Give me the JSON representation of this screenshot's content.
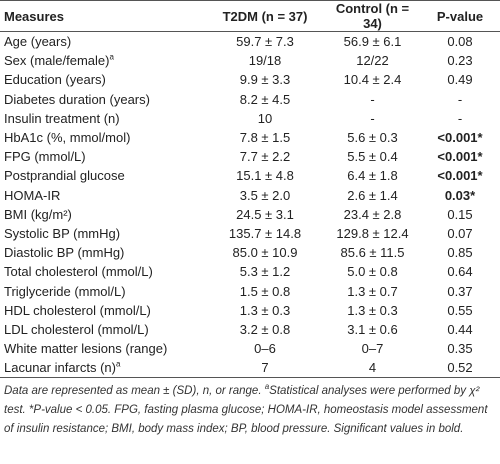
{
  "table": {
    "header": [
      "Measures",
      "T2DM (n = 37)",
      "Control (n = 34)",
      "P-value"
    ],
    "rows": [
      {
        "label": "Age (years)",
        "t2dm": "59.7 ± 7.3",
        "control": "56.9 ± 6.1",
        "p": "0.08"
      },
      {
        "label": "Sex (male/female)",
        "sup": "a",
        "t2dm": "19/18",
        "control": "12/22",
        "p": "0.23"
      },
      {
        "label": "Education (years)",
        "t2dm": "9.9 ± 3.3",
        "control": "10.4 ± 2.4",
        "p": "0.49"
      },
      {
        "label": "Diabetes duration (years)",
        "t2dm": "8.2 ± 4.5",
        "control": "-",
        "p": "-"
      },
      {
        "label": "Insulin treatment (n)",
        "t2dm": "10",
        "control": "-",
        "p": "-"
      },
      {
        "label": "HbA1c (%, mmol/mol)",
        "t2dm": "7.8 ± 1.5",
        "control": "5.6 ± 0.3",
        "p": "<0.001*",
        "bold": true
      },
      {
        "label": "FPG (mmol/L)",
        "t2dm": "7.7 ± 2.2",
        "control": "5.5 ± 0.4",
        "p": "<0.001*",
        "bold": true
      },
      {
        "label": "Postprandial glucose",
        "t2dm": "15.1 ± 4.8",
        "control": "6.4 ± 1.8",
        "p": "<0.001*",
        "bold": true
      },
      {
        "label": "HOMA-IR",
        "t2dm": "3.5 ± 2.0",
        "control": "2.6 ± 1.4",
        "p": "0.03*",
        "bold": true
      },
      {
        "label": "BMI (kg/m²)",
        "t2dm": "24.5 ± 3.1",
        "control": "23.4 ± 2.8",
        "p": "0.15"
      },
      {
        "label": "Systolic BP (mmHg)",
        "t2dm": "135.7 ± 14.8",
        "control": "129.8 ± 12.4",
        "p": "0.07"
      },
      {
        "label": "Diastolic BP (mmHg)",
        "t2dm": "85.0 ± 10.9",
        "control": "85.6 ± 11.5",
        "p": "0.85"
      },
      {
        "label": "Total cholesterol (mmol/L)",
        "t2dm": "5.3 ± 1.2",
        "control": "5.0 ± 0.8",
        "p": "0.64"
      },
      {
        "label": "Triglyceride (mmol/L)",
        "t2dm": "1.5 ± 0.8",
        "control": "1.3 ± 0.7",
        "p": "0.37"
      },
      {
        "label": "HDL cholesterol (mmol/L)",
        "t2dm": "1.3 ± 0.3",
        "control": "1.3 ± 0.3",
        "p": "0.55"
      },
      {
        "label": "LDL cholesterol (mmol/L)",
        "t2dm": "3.2 ± 0.8",
        "control": "3.1 ± 0.6",
        "p": "0.44"
      },
      {
        "label": "White matter lesions (range)",
        "t2dm": "0–6",
        "control": "0–7",
        "p": "0.35"
      },
      {
        "label": "Lacunar infarcts (n)",
        "sup": "a",
        "t2dm": "7",
        "control": "4",
        "p": "0.52"
      }
    ]
  },
  "footnote": [
    "Data are represented as mean ± (SD), n, or range. ",
    "a",
    "Statistical analyses were performed by χ² test. *P-value < 0.05. FPG, fasting plasma glucose; HOMA-IR, homeostasis model assessment of insulin resistance; BMI, body mass index; BP, blood pressure. Significant values in bold."
  ]
}
